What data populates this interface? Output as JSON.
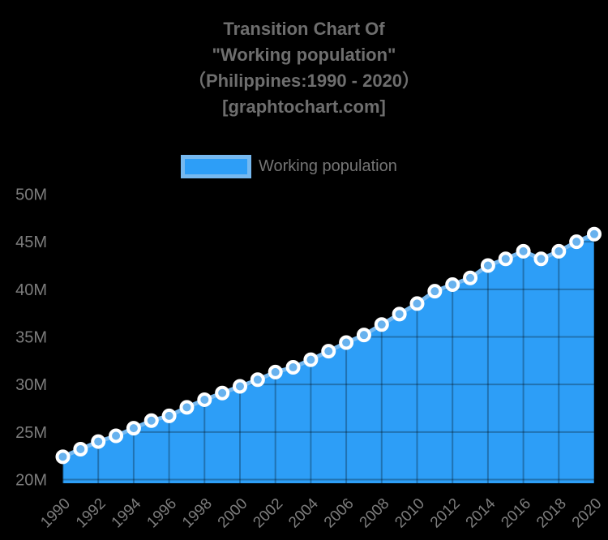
{
  "header": {
    "title_lines": [
      "Transition Chart Of",
      "\"Working population\"",
      "（Philippines:1990 - 2020）",
      "[graphtochart.com]"
    ]
  },
  "legend": {
    "label": "Working population"
  },
  "chart_data": {
    "type": "area",
    "title": "Transition Chart Of \"Working population\" (Philippines:1990 - 2020) [graphtochart.com]",
    "x": [
      1990,
      1991,
      1992,
      1993,
      1994,
      1995,
      1996,
      1997,
      1998,
      1999,
      2000,
      2001,
      2002,
      2003,
      2004,
      2005,
      2006,
      2007,
      2008,
      2009,
      2010,
      2011,
      2012,
      2013,
      2014,
      2015,
      2016,
      2017,
      2018,
      2019,
      2020
    ],
    "series": [
      {
        "name": "Working population",
        "values": [
          22.4,
          23.2,
          24.0,
          24.6,
          25.4,
          26.2,
          26.7,
          27.6,
          28.4,
          29.1,
          29.8,
          30.5,
          31.3,
          31.8,
          32.6,
          33.5,
          34.4,
          35.2,
          36.3,
          37.4,
          38.5,
          39.8,
          40.5,
          41.2,
          42.5,
          43.2,
          44.0,
          43.2,
          44.0,
          45.0,
          45.8
        ]
      }
    ],
    "unit": "millions of people",
    "ylim": [
      20,
      50
    ],
    "ytick_step": 5,
    "ytick_labels": [
      "20M",
      "25M",
      "30M",
      "35M",
      "40M",
      "45M",
      "50M"
    ],
    "xtick_every": 2,
    "xtick_labels": [
      "1990",
      "1992",
      "1994",
      "1996",
      "1998",
      "2000",
      "2002",
      "2004",
      "2006",
      "2008",
      "2010",
      "2012",
      "2014",
      "2016",
      "2018",
      "2020"
    ],
    "grid": true,
    "legend_position": "top",
    "colors": {
      "background": "#000000",
      "area": "#2D9EF7",
      "line": "#76B9F0",
      "point": "#68B2EE",
      "point_border": "#FFFFFF",
      "grid": "rgba(0,0,0,0.28)",
      "axis_text": "#7D7D7D",
      "title_text": "#6E6E6E",
      "legend_text": "#757575"
    }
  }
}
